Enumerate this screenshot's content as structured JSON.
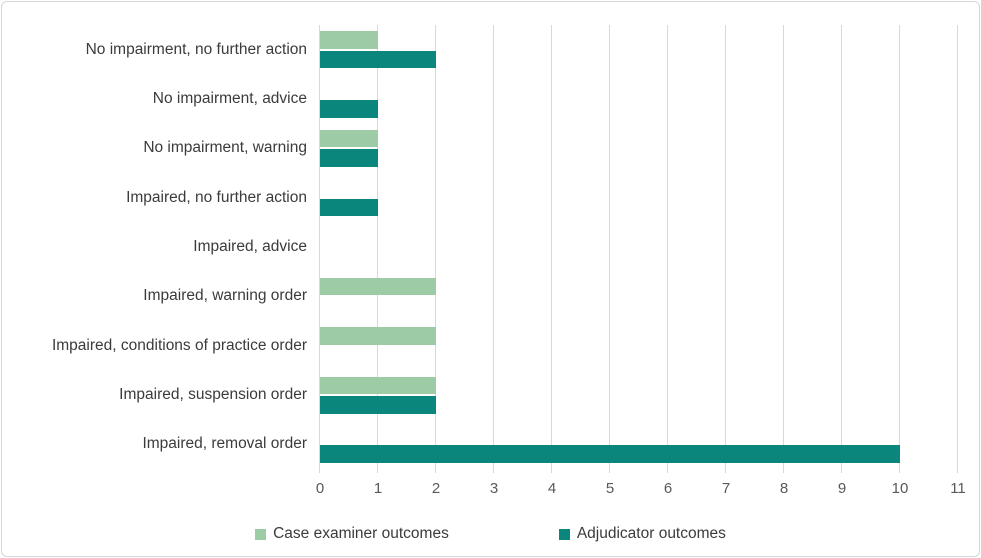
{
  "chart_data": {
    "type": "bar",
    "orientation": "horizontal",
    "title": "",
    "xlabel": "",
    "ylabel": "",
    "categories": [
      "No impairment, no further action",
      "No impairment, advice",
      "No impairment, warning",
      "Impaired, no further action",
      "Impaired, advice",
      "Impaired, warning order",
      "Impaired, conditions of practice order",
      "Impaired, suspension order",
      "Impaired, removal order"
    ],
    "series": [
      {
        "name": "Case examiner outcomes",
        "color": "#9ccba6",
        "values": [
          1,
          0,
          1,
          0,
          0,
          2,
          2,
          2,
          0
        ]
      },
      {
        "name": "Adjudicator outcomes",
        "color": "#0a867c",
        "values": [
          2,
          1,
          1,
          1,
          0,
          0,
          0,
          2,
          10
        ]
      }
    ],
    "xlim": [
      0,
      11
    ],
    "x_tick_labels": [
      "0",
      "1",
      "2",
      "3",
      "4",
      "5",
      "6",
      "7",
      "8",
      "9",
      "10",
      "11"
    ],
    "grid": "vertical",
    "gridline_color": "#d9d9d9",
    "tick_label_color": "#595959",
    "category_label_color": "#3b3b3b",
    "legend_position": "bottom"
  }
}
